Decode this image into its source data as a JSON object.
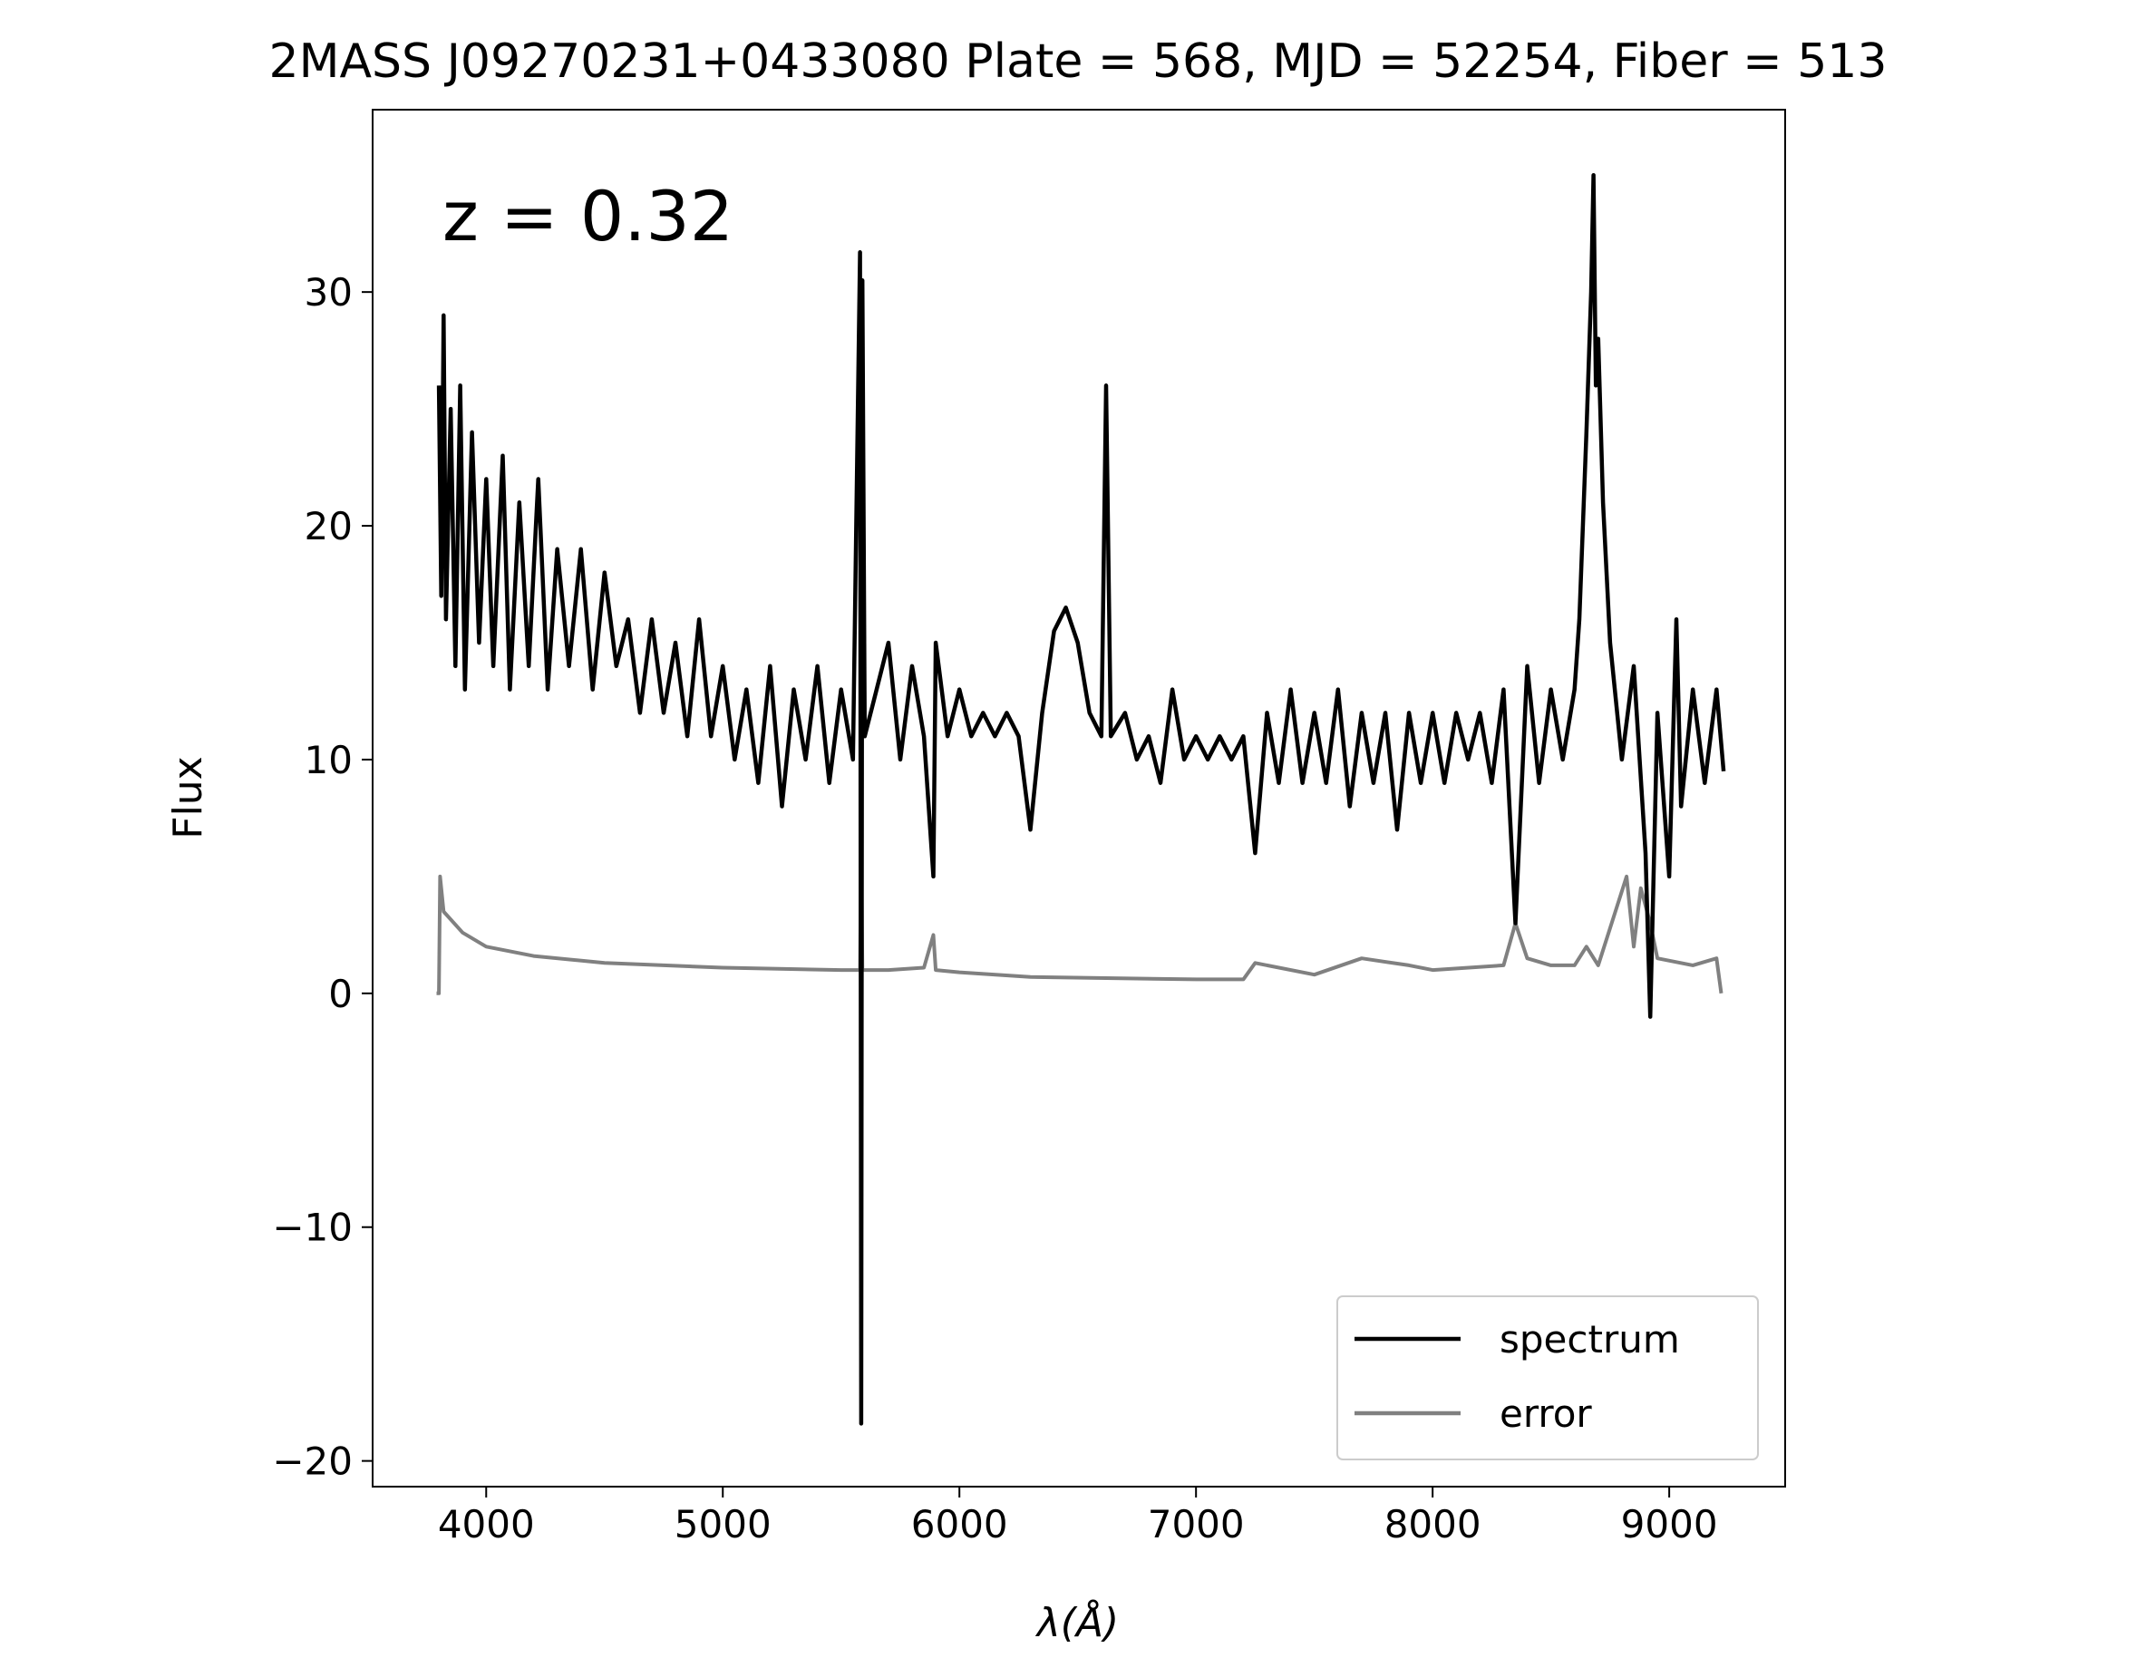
{
  "chart_data": {
    "type": "line",
    "title": "2MASS J09270231+0433080 Plate = 568, MJD = 52254, Fiber = 513",
    "annotation": "z = 0.32",
    "x_label": "λ(Å)",
    "y_label": "Flux",
    "xlim": [
      3520,
      9490
    ],
    "ylim": [
      -21.1,
      37.8
    ],
    "xticks": [
      4000,
      5000,
      6000,
      7000,
      8000,
      9000
    ],
    "yticks": [
      {
        "value": -20,
        "label": "−20"
      },
      {
        "value": -10,
        "label": "−10"
      },
      0,
      10,
      20,
      30
    ],
    "legend": "lower right",
    "grid": false,
    "series": [
      {
        "name": "spectrum",
        "color": "#000000",
        "x": [
          3800,
          3810,
          3820,
          3830,
          3850,
          3870,
          3890,
          3910,
          3940,
          3970,
          4000,
          4030,
          4070,
          4100,
          4140,
          4180,
          4220,
          4260,
          4300,
          4350,
          4400,
          4450,
          4500,
          4550,
          4600,
          4650,
          4700,
          4750,
          4800,
          4850,
          4900,
          4950,
          5000,
          5050,
          5100,
          5150,
          5200,
          5250,
          5300,
          5350,
          5400,
          5450,
          5500,
          5550,
          5580,
          5585,
          5590,
          5600,
          5650,
          5700,
          5750,
          5800,
          5850,
          5890,
          5900,
          5950,
          6000,
          6050,
          6100,
          6150,
          6200,
          6250,
          6300,
          6350,
          6400,
          6450,
          6500,
          6550,
          6600,
          6620,
          6640,
          6700,
          6750,
          6800,
          6850,
          6900,
          6950,
          7000,
          7050,
          7100,
          7150,
          7200,
          7250,
          7300,
          7350,
          7400,
          7450,
          7500,
          7550,
          7600,
          7650,
          7700,
          7750,
          7800,
          7850,
          7900,
          7950,
          8000,
          8050,
          8100,
          8150,
          8200,
          8250,
          8300,
          8350,
          8400,
          8450,
          8500,
          8550,
          8600,
          8620,
          8650,
          8670,
          8680,
          8690,
          8700,
          8720,
          8750,
          8800,
          8850,
          8900,
          8920,
          8950,
          9000,
          9030,
          9050,
          9100,
          9150,
          9200,
          9230
        ],
        "values": [
          26,
          17,
          29,
          16,
          25,
          14,
          26,
          13,
          24,
          15,
          22,
          14,
          23,
          13,
          21,
          14,
          22,
          13,
          19,
          14,
          19,
          13,
          18,
          14,
          16,
          12,
          16,
          12,
          15,
          11,
          16,
          11,
          14,
          10,
          13,
          9,
          14,
          8,
          13,
          10,
          14,
          9,
          13,
          10,
          31.7,
          -18.4,
          30.5,
          11,
          13,
          15,
          10,
          14,
          11,
          5,
          15,
          11,
          13,
          11,
          12,
          11,
          12,
          11,
          7,
          12,
          15.5,
          16.5,
          15,
          12,
          11,
          26,
          11,
          12,
          10,
          11,
          9,
          13,
          10,
          11,
          10,
          11,
          10,
          11,
          6,
          12,
          9,
          13,
          9,
          12,
          9,
          13,
          8,
          12,
          9,
          12,
          7,
          12,
          9,
          12,
          9,
          12,
          10,
          12,
          9,
          13,
          3,
          14,
          9,
          13,
          10,
          13,
          16,
          24,
          30,
          35,
          26,
          28,
          21,
          15,
          10,
          14,
          6,
          -1,
          12,
          5,
          16,
          8,
          13,
          9,
          13,
          9.5
        ]
      },
      {
        "name": "error",
        "color": "#808080",
        "x": [
          3790,
          3800,
          3805,
          3820,
          3900,
          4000,
          4200,
          4500,
          5000,
          5500,
          5580,
          5585,
          5590,
          5700,
          5850,
          5890,
          5900,
          6000,
          6300,
          7000,
          7200,
          7250,
          7500,
          7700,
          7900,
          8000,
          8300,
          8350,
          8400,
          8500,
          8600,
          8650,
          8700,
          8820,
          8850,
          8880,
          8920,
          8950,
          9100,
          9200,
          9220
        ],
        "values": [
          0,
          0,
          5,
          3.5,
          2.6,
          2,
          1.6,
          1.3,
          1.1,
          1,
          1,
          7,
          1,
          1,
          1.1,
          2.5,
          1,
          0.9,
          0.7,
          0.6,
          0.6,
          1.3,
          0.8,
          1.5,
          1.2,
          1,
          1.2,
          3,
          1.5,
          1.2,
          1.2,
          2,
          1.2,
          5,
          2,
          4.5,
          3,
          1.5,
          1.2,
          1.5,
          0
        ]
      }
    ]
  }
}
